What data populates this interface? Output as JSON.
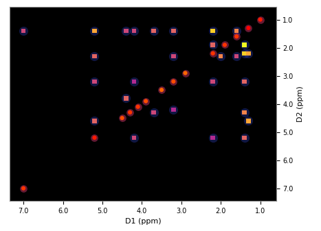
{
  "chart_data": {
    "type": "contour2d",
    "x_label": "D1 (ppm)",
    "y_label": "D2 (ppm)",
    "xlim": [
      7.35,
      0.6
    ],
    "ylim": [
      7.45,
      0.55
    ],
    "xticks": [
      7.0,
      6.0,
      5.0,
      4.0,
      3.0,
      2.0,
      1.0
    ],
    "yticks": [
      1.0,
      2.0,
      3.0,
      4.0,
      5.0,
      6.0,
      7.0
    ],
    "grid": false,
    "diagonal": {
      "d1": [
        7.0,
        5.2,
        4.5,
        4.3,
        4.1,
        3.9,
        3.5,
        3.2,
        2.9,
        2.2,
        1.9,
        1.6,
        1.3,
        1.0
      ],
      "d2": [
        7.0,
        5.2,
        4.5,
        4.3,
        4.1,
        3.9,
        3.5,
        3.2,
        2.9,
        2.2,
        1.9,
        1.6,
        1.3,
        1.0
      ],
      "intensity": [
        0.8,
        0.9,
        0.7,
        0.8,
        0.8,
        0.7,
        0.6,
        0.7,
        0.6,
        0.8,
        0.8,
        0.8,
        1.0,
        0.9
      ]
    },
    "cross_peaks": {
      "d1": [
        7.0,
        5.2,
        5.2,
        5.2,
        5.2,
        4.4,
        4.4,
        4.2,
        4.2,
        4.2,
        3.7,
        3.7,
        3.2,
        3.2,
        3.2,
        2.2,
        2.2,
        2.2,
        2.2,
        2.0,
        1.4,
        1.4,
        1.4,
        1.4,
        1.4,
        1.3,
        1.3,
        1.6,
        1.6
      ],
      "d2": [
        1.4,
        1.4,
        2.3,
        3.2,
        4.6,
        1.4,
        3.8,
        1.4,
        3.2,
        5.2,
        1.4,
        4.3,
        1.4,
        2.3,
        4.2,
        1.4,
        1.9,
        3.2,
        5.2,
        2.3,
        2.2,
        3.2,
        4.3,
        5.2,
        1.9,
        2.2,
        4.6,
        1.4,
        2.3
      ],
      "intensity": [
        0.5,
        0.8,
        0.6,
        0.5,
        0.6,
        0.5,
        0.6,
        0.5,
        0.4,
        0.5,
        0.6,
        0.5,
        0.6,
        0.5,
        0.4,
        0.9,
        0.6,
        0.5,
        0.4,
        0.7,
        0.9,
        0.6,
        0.7,
        0.6,
        1.0,
        0.8,
        0.8,
        0.7,
        0.5
      ]
    }
  }
}
